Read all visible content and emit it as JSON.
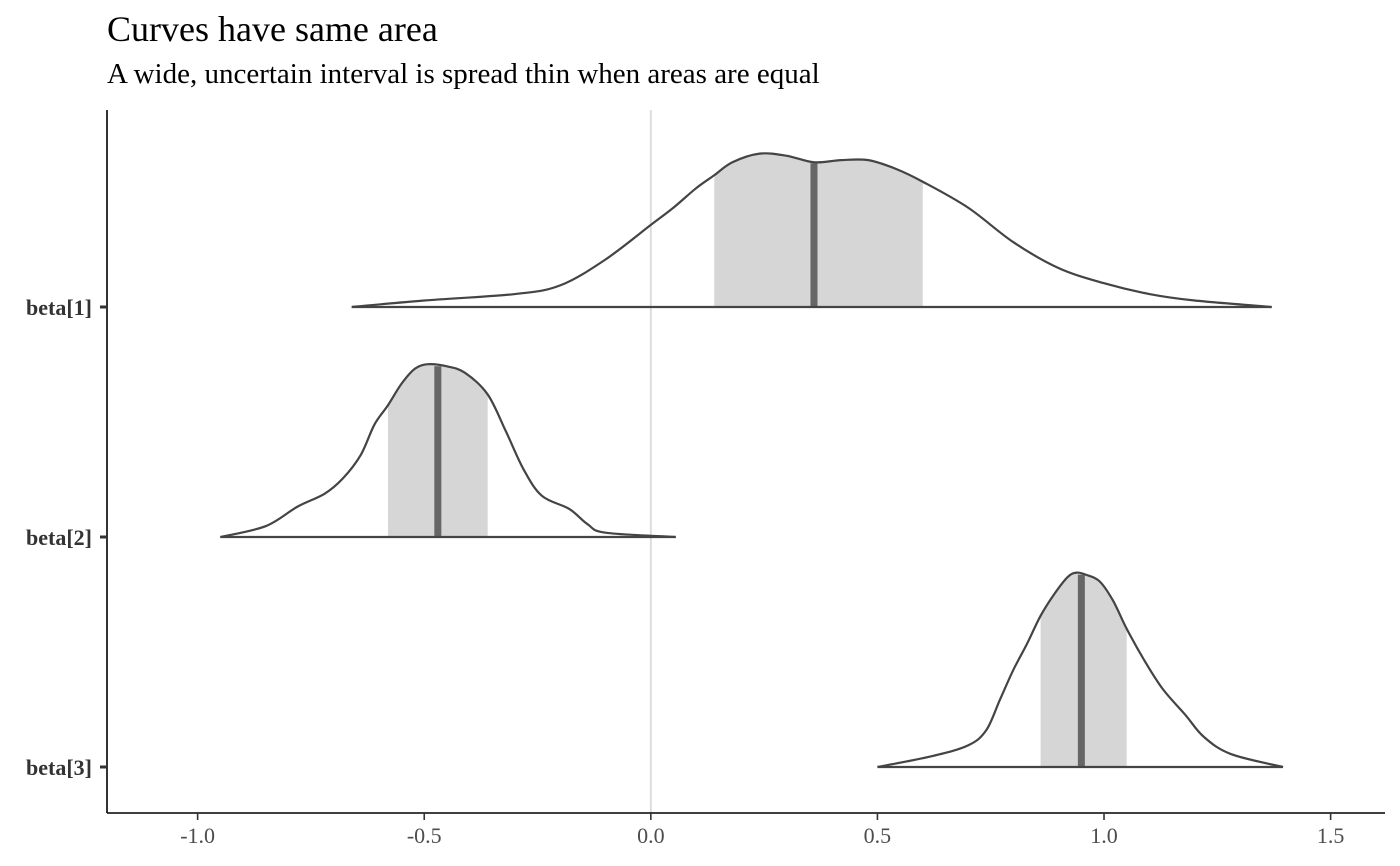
{
  "chart_data": {
    "type": "area",
    "title": "Curves have same area",
    "subtitle": "A wide, uncertain interval is spread thin when areas are equal",
    "xlabel": "",
    "ylabel": "",
    "xlim": [
      -1.2,
      1.62
    ],
    "x_ticks": [
      -1.0,
      -0.5,
      0.0,
      0.5,
      1.0,
      1.5
    ],
    "x_tick_labels": [
      "-1.0",
      "-0.5",
      "0.0",
      "0.5",
      "1.0",
      "1.5"
    ],
    "reference_line_x": 0.0,
    "grid": false,
    "colors": {
      "curve": "#444444",
      "interval_fill": "#d6d6d6",
      "median_line": "#666666",
      "reference_line": "#dddddd",
      "axis": "#000000"
    },
    "series": [
      {
        "name": "beta[1]",
        "interval": [
          0.14,
          0.6
        ],
        "median": 0.36,
        "density": [
          [
            -0.66,
            0.0
          ],
          [
            -0.5,
            0.03
          ],
          [
            -0.3,
            0.06
          ],
          [
            -0.2,
            0.1
          ],
          [
            -0.1,
            0.22
          ],
          [
            0.0,
            0.38
          ],
          [
            0.05,
            0.46
          ],
          [
            0.1,
            0.55
          ],
          [
            0.14,
            0.61
          ],
          [
            0.18,
            0.67
          ],
          [
            0.24,
            0.71
          ],
          [
            0.3,
            0.7
          ],
          [
            0.36,
            0.67
          ],
          [
            0.42,
            0.68
          ],
          [
            0.48,
            0.68
          ],
          [
            0.54,
            0.64
          ],
          [
            0.6,
            0.58
          ],
          [
            0.7,
            0.46
          ],
          [
            0.8,
            0.3
          ],
          [
            0.9,
            0.18
          ],
          [
            1.0,
            0.11
          ],
          [
            1.1,
            0.06
          ],
          [
            1.2,
            0.03
          ],
          [
            1.37,
            0.0
          ]
        ]
      },
      {
        "name": "beta[2]",
        "interval": [
          -0.58,
          -0.36
        ],
        "median": -0.47,
        "density": [
          [
            -0.95,
            0.0
          ],
          [
            -0.85,
            0.05
          ],
          [
            -0.78,
            0.14
          ],
          [
            -0.72,
            0.2
          ],
          [
            -0.68,
            0.27
          ],
          [
            -0.64,
            0.38
          ],
          [
            -0.61,
            0.52
          ],
          [
            -0.58,
            0.61
          ],
          [
            -0.55,
            0.71
          ],
          [
            -0.52,
            0.78
          ],
          [
            -0.49,
            0.8
          ],
          [
            -0.45,
            0.79
          ],
          [
            -0.41,
            0.76
          ],
          [
            -0.36,
            0.66
          ],
          [
            -0.32,
            0.49
          ],
          [
            -0.28,
            0.31
          ],
          [
            -0.24,
            0.19
          ],
          [
            -0.18,
            0.13
          ],
          [
            -0.14,
            0.06
          ],
          [
            -0.1,
            0.02
          ],
          [
            0.055,
            0.0
          ]
        ]
      },
      {
        "name": "beta[3]",
        "interval": [
          0.86,
          1.05
        ],
        "median": 0.95,
        "density": [
          [
            0.5,
            0.0
          ],
          [
            0.62,
            0.05
          ],
          [
            0.7,
            0.1
          ],
          [
            0.74,
            0.17
          ],
          [
            0.77,
            0.31
          ],
          [
            0.8,
            0.45
          ],
          [
            0.83,
            0.57
          ],
          [
            0.86,
            0.7
          ],
          [
            0.89,
            0.8
          ],
          [
            0.92,
            0.88
          ],
          [
            0.94,
            0.9
          ],
          [
            0.96,
            0.89
          ],
          [
            0.99,
            0.86
          ],
          [
            1.02,
            0.77
          ],
          [
            1.05,
            0.64
          ],
          [
            1.09,
            0.49
          ],
          [
            1.13,
            0.36
          ],
          [
            1.18,
            0.24
          ],
          [
            1.22,
            0.14
          ],
          [
            1.28,
            0.06
          ],
          [
            1.395,
            0.0
          ]
        ]
      }
    ]
  }
}
